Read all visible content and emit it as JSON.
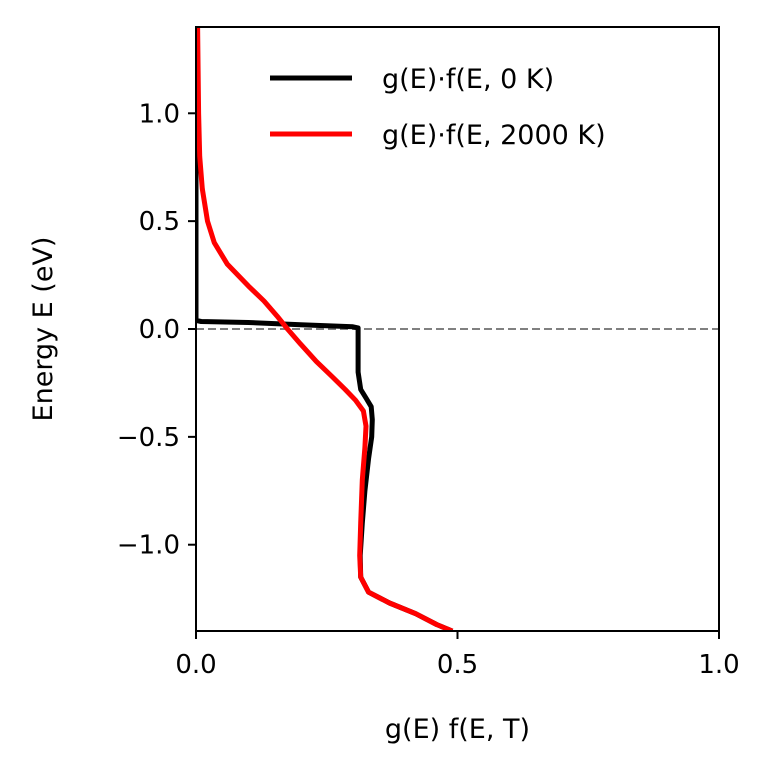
{
  "chart_data": {
    "type": "line",
    "xlabel": "g(E) f(E, T)",
    "ylabel": "Energy E (eV)",
    "xlim": [
      0.0,
      1.0
    ],
    "ylim": [
      -1.4,
      1.4
    ],
    "xticks": [
      0.0,
      0.5,
      1.0
    ],
    "xtick_labels": [
      "0.0",
      "0.5",
      "1.0"
    ],
    "yticks": [
      1.0,
      0.5,
      0.0,
      -0.5,
      -1.0
    ],
    "ytick_labels": [
      "1.0",
      "0.5",
      "0.0",
      "−0.5",
      "−1.0"
    ],
    "legend_position": "top-right",
    "reference_line": {
      "y": 0.0,
      "style": "dashed",
      "color": "#808080"
    },
    "series": [
      {
        "name": "g(E)·f(E, 0 K)",
        "color": "#000000",
        "points": [
          [
            0.0,
            1.4
          ],
          [
            0.0,
            0.5
          ],
          [
            0.0,
            0.04
          ],
          [
            0.01,
            0.035
          ],
          [
            0.1,
            0.03
          ],
          [
            0.2,
            0.02
          ],
          [
            0.3,
            0.01
          ],
          [
            0.31,
            0.005
          ],
          [
            0.31,
            -0.1
          ],
          [
            0.31,
            -0.2
          ],
          [
            0.315,
            -0.28
          ],
          [
            0.325,
            -0.32
          ],
          [
            0.335,
            -0.36
          ],
          [
            0.337,
            -0.42
          ],
          [
            0.336,
            -0.5
          ],
          [
            0.33,
            -0.6
          ],
          [
            0.323,
            -0.75
          ],
          [
            0.318,
            -0.9
          ],
          [
            0.314,
            -1.05
          ],
          [
            0.315,
            -1.15
          ],
          [
            0.33,
            -1.22
          ],
          [
            0.37,
            -1.27
          ],
          [
            0.42,
            -1.32
          ],
          [
            0.46,
            -1.37
          ],
          [
            0.49,
            -1.4
          ]
        ]
      },
      {
        "name": "g(E)·f(E, 2000 K)",
        "color": "#ff0000",
        "points": [
          [
            0.003,
            1.4
          ],
          [
            0.004,
            1.2
          ],
          [
            0.005,
            1.0
          ],
          [
            0.007,
            0.8
          ],
          [
            0.012,
            0.65
          ],
          [
            0.022,
            0.5
          ],
          [
            0.035,
            0.4
          ],
          [
            0.06,
            0.3
          ],
          [
            0.1,
            0.2
          ],
          [
            0.13,
            0.13
          ],
          [
            0.155,
            0.06
          ],
          [
            0.175,
            0.0
          ],
          [
            0.2,
            -0.07
          ],
          [
            0.23,
            -0.15
          ],
          [
            0.26,
            -0.22
          ],
          [
            0.285,
            -0.28
          ],
          [
            0.305,
            -0.33
          ],
          [
            0.32,
            -0.38
          ],
          [
            0.325,
            -0.45
          ],
          [
            0.323,
            -0.55
          ],
          [
            0.318,
            -0.7
          ],
          [
            0.315,
            -0.9
          ],
          [
            0.313,
            -1.05
          ],
          [
            0.315,
            -1.15
          ],
          [
            0.33,
            -1.22
          ],
          [
            0.37,
            -1.27
          ],
          [
            0.42,
            -1.32
          ],
          [
            0.46,
            -1.37
          ],
          [
            0.49,
            -1.4
          ]
        ]
      }
    ]
  }
}
